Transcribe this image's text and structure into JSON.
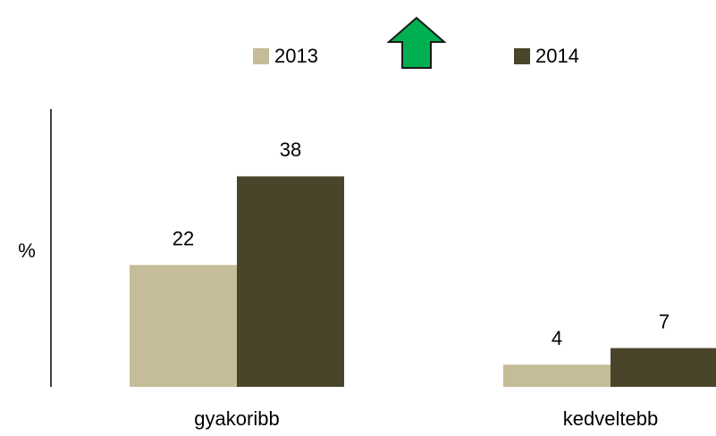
{
  "chart_data": {
    "type": "bar",
    "ylabel": "%",
    "categories": [
      "gyakoribb",
      "kedveltebb"
    ],
    "series": [
      {
        "name": "2013",
        "color": "#c4bd97",
        "values": [
          22,
          4
        ]
      },
      {
        "name": "2014",
        "color": "#4a452a",
        "values": [
          38,
          7
        ]
      }
    ],
    "ylim": [
      0,
      50
    ],
    "grid": false
  }
}
